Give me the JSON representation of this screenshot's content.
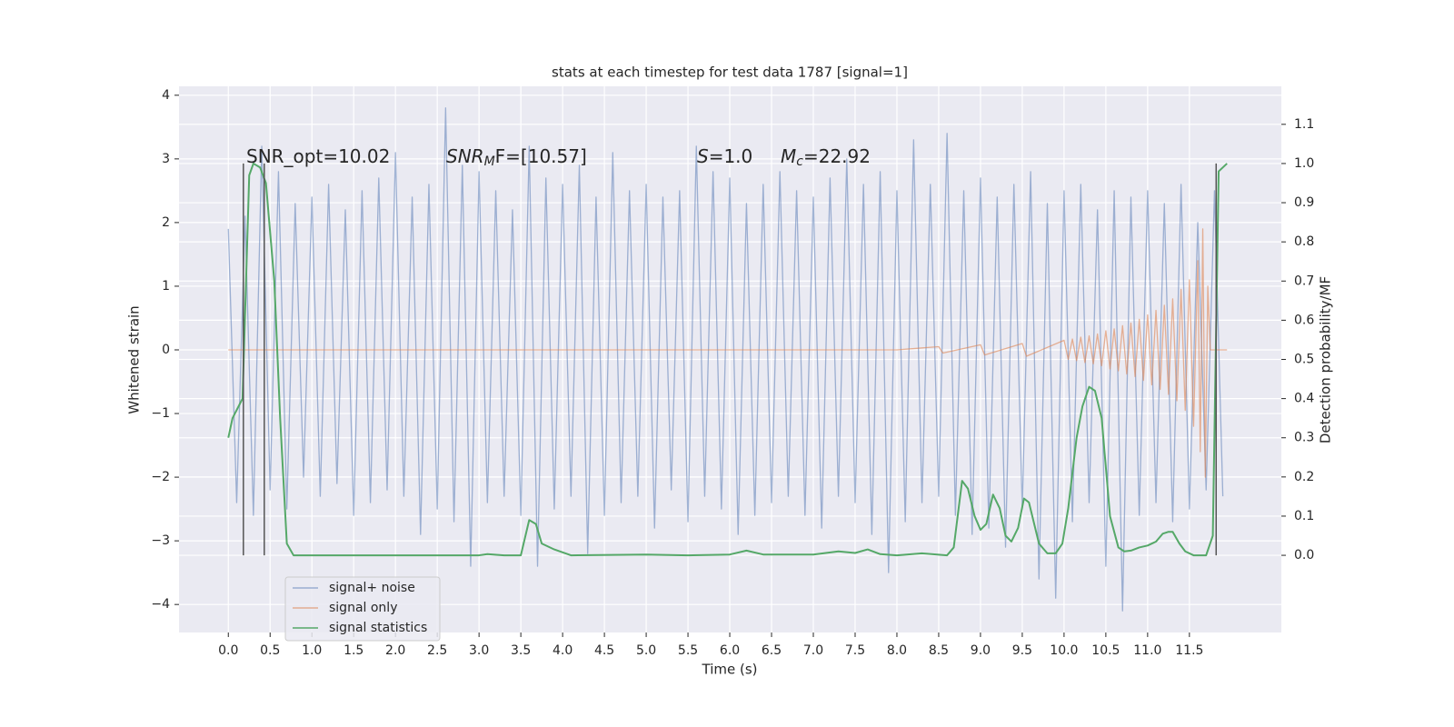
{
  "chart_data": {
    "type": "line",
    "title": "stats at each timestep for test data 1787 [signal=1]",
    "xlabel": "Time (s)",
    "ylabel": "Whitened strain",
    "y2label": "Detection probability/MF",
    "xlim": [
      -0.59,
      12.6
    ],
    "ylim": [
      -4.44,
      4.14
    ],
    "y2lim": [
      -0.197,
      1.197
    ],
    "xticks": [
      {
        "value": 0,
        "label": "0.0"
      },
      0.5,
      {
        "value": 1,
        "label": "1.0"
      },
      1.5,
      {
        "value": 2,
        "label": "2.0"
      },
      2.5,
      {
        "value": 3,
        "label": "3.0"
      },
      3.5,
      {
        "value": 4,
        "label": "4.0"
      },
      4.5,
      {
        "value": 5,
        "label": "5.0"
      },
      5.5,
      {
        "value": 6,
        "label": "6.0"
      },
      6.5,
      {
        "value": 7,
        "label": "7.0"
      },
      7.5,
      {
        "value": 8,
        "label": "8.0"
      },
      8.5,
      {
        "value": 9,
        "label": "9.0"
      },
      9.5,
      {
        "value": 10,
        "label": "10.0"
      },
      10.5,
      {
        "value": 11,
        "label": "11.0"
      },
      11.5
    ],
    "yticks": [
      {
        "value": -4,
        "label": "−4"
      },
      {
        "value": -3,
        "label": "−3"
      },
      {
        "value": -2,
        "label": "−2"
      },
      {
        "value": -1,
        "label": "−1"
      },
      0,
      1,
      2,
      3,
      4
    ],
    "y2ticks": [
      {
        "value": 0,
        "label": "0.0"
      },
      0.1,
      0.2,
      0.3,
      0.4,
      0.5,
      0.6,
      0.7,
      0.8,
      0.9,
      {
        "value": 1,
        "label": "1.0"
      },
      1.1
    ],
    "grid": true,
    "legend": "lower left",
    "series": [
      {
        "name": "signal+ noise",
        "color": "#4c72b0",
        "x": [
          0.0,
          0.1,
          0.2,
          0.3,
          0.4,
          0.5,
          0.6,
          0.7,
          0.8,
          0.9,
          1.0,
          1.1,
          1.2,
          1.3,
          1.4,
          1.5,
          1.6,
          1.7,
          1.8,
          1.9,
          2.0,
          2.1,
          2.2,
          2.3,
          2.4,
          2.5,
          2.6,
          2.7,
          2.8,
          2.9,
          3.0,
          3.1,
          3.2,
          3.3,
          3.4,
          3.5,
          3.6,
          3.7,
          3.8,
          3.9,
          4.0,
          4.1,
          4.2,
          4.3,
          4.4,
          4.5,
          4.6,
          4.7,
          4.8,
          4.9,
          5.0,
          5.1,
          5.2,
          5.3,
          5.4,
          5.5,
          5.6,
          5.7,
          5.8,
          5.9,
          6.0,
          6.1,
          6.2,
          6.3,
          6.4,
          6.5,
          6.6,
          6.7,
          6.8,
          6.9,
          7.0,
          7.1,
          7.2,
          7.3,
          7.4,
          7.5,
          7.6,
          7.7,
          7.8,
          7.9,
          8.0,
          8.1,
          8.2,
          8.3,
          8.4,
          8.5,
          8.6,
          8.7,
          8.8,
          8.9,
          9.0,
          9.1,
          9.2,
          9.3,
          9.4,
          9.5,
          9.6,
          9.7,
          9.8,
          9.9,
          10.0,
          10.1,
          10.2,
          10.3,
          10.4,
          10.5,
          10.6,
          10.7,
          10.8,
          10.9,
          11.0,
          11.1,
          11.2,
          11.3,
          11.4,
          11.5,
          11.6,
          11.7,
          11.8,
          11.9
        ],
        "values": [
          1.9,
          -2.4,
          2.1,
          -2.6,
          3.2,
          -2.2,
          2.8,
          -2.5,
          2.3,
          -2.0,
          2.4,
          -2.3,
          2.6,
          -2.1,
          2.2,
          -2.6,
          2.5,
          -2.4,
          2.7,
          -2.2,
          3.1,
          -2.3,
          2.4,
          -2.9,
          2.6,
          -2.5,
          3.8,
          -2.7,
          2.9,
          -3.4,
          2.8,
          -2.4,
          2.5,
          -2.3,
          2.2,
          -2.6,
          3.2,
          -3.4,
          2.7,
          -2.5,
          2.6,
          -2.3,
          2.9,
          -3.2,
          2.4,
          -2.6,
          3.1,
          -2.4,
          2.5,
          -2.3,
          2.6,
          -2.8,
          2.4,
          -2.2,
          2.5,
          -2.7,
          3.2,
          -2.3,
          2.8,
          -2.5,
          2.7,
          -2.9,
          2.3,
          -2.6,
          2.6,
          -2.4,
          2.8,
          -2.3,
          2.5,
          -2.6,
          2.4,
          -2.8,
          2.7,
          -2.3,
          3.0,
          -2.4,
          2.6,
          -2.9,
          2.8,
          -3.5,
          2.5,
          -2.7,
          3.3,
          -2.4,
          2.6,
          -2.3,
          3.4,
          -2.6,
          2.5,
          -2.9,
          2.7,
          -2.8,
          2.4,
          -3.1,
          2.6,
          -2.5,
          2.8,
          -3.6,
          2.3,
          -3.9,
          2.5,
          -2.7,
          2.6,
          -2.4,
          2.2,
          -3.4,
          2.5,
          -4.1,
          2.4,
          -2.6,
          2.5,
          -2.4,
          2.3,
          -2.7,
          2.6,
          -2.5,
          2.0,
          -2.2,
          2.5,
          -2.3
        ]
      },
      {
        "name": "signal only",
        "color": "#dd8452",
        "x": [
          0.0,
          8.0,
          8.5,
          8.55,
          9.0,
          9.05,
          9.5,
          9.55,
          10.0,
          10.05,
          10.1,
          10.15,
          10.2,
          10.25,
          10.3,
          10.35,
          10.4,
          10.45,
          10.5,
          10.55,
          10.6,
          10.65,
          10.7,
          10.75,
          10.8,
          10.85,
          10.9,
          10.95,
          11.0,
          11.05,
          11.1,
          11.15,
          11.2,
          11.25,
          11.3,
          11.35,
          11.4,
          11.45,
          11.5,
          11.55,
          11.6,
          11.63,
          11.66,
          11.69,
          11.72,
          11.75,
          11.95
        ],
        "values": [
          0,
          0,
          0.05,
          -0.05,
          0.08,
          -0.08,
          0.1,
          -0.1,
          0.15,
          -0.15,
          0.17,
          -0.17,
          0.2,
          -0.2,
          0.22,
          -0.22,
          0.25,
          -0.25,
          0.3,
          -0.3,
          0.33,
          -0.33,
          0.38,
          -0.38,
          0.42,
          -0.42,
          0.48,
          -0.48,
          0.55,
          -0.55,
          0.62,
          -0.62,
          0.7,
          -0.7,
          0.8,
          -0.8,
          0.95,
          -0.95,
          1.1,
          -1.2,
          1.4,
          -1.6,
          1.9,
          -2.0,
          1.0,
          0,
          0
        ]
      },
      {
        "name": "signal statistics",
        "color": "#55a868",
        "axis": "y2",
        "x": [
          0.0,
          0.05,
          0.17,
          0.25,
          0.3,
          0.38,
          0.45,
          0.55,
          0.62,
          0.7,
          0.78,
          1.0,
          2.0,
          3.0,
          3.1,
          3.3,
          3.5,
          3.6,
          3.68,
          3.75,
          3.9,
          4.1,
          5.0,
          5.5,
          6.0,
          6.2,
          6.4,
          7.0,
          7.3,
          7.5,
          7.65,
          7.8,
          8.0,
          8.3,
          8.6,
          8.68,
          8.78,
          8.85,
          8.93,
          9.0,
          9.07,
          9.15,
          9.23,
          9.3,
          9.37,
          9.45,
          9.52,
          9.58,
          9.7,
          9.8,
          9.9,
          9.98,
          10.05,
          10.15,
          10.22,
          10.3,
          10.37,
          10.45,
          10.55,
          10.65,
          10.72,
          10.8,
          10.9,
          11.0,
          11.1,
          11.18,
          11.25,
          11.3,
          11.38,
          11.45,
          11.55,
          11.7,
          11.78,
          11.85,
          11.95
        ],
        "values": [
          0.3,
          0.35,
          0.4,
          0.97,
          1.0,
          0.99,
          0.95,
          0.7,
          0.35,
          0.03,
          0.0,
          0,
          0,
          0,
          0.003,
          0,
          0,
          0.09,
          0.08,
          0.03,
          0.015,
          0,
          0.002,
          0,
          0.002,
          0.012,
          0.002,
          0.002,
          0.01,
          0.006,
          0.015,
          0.003,
          0,
          0.005,
          0,
          0.02,
          0.19,
          0.17,
          0.1,
          0.065,
          0.08,
          0.155,
          0.12,
          0.05,
          0.035,
          0.07,
          0.145,
          0.135,
          0.03,
          0.005,
          0.005,
          0.03,
          0.12,
          0.3,
          0.38,
          0.43,
          0.42,
          0.35,
          0.1,
          0.02,
          0.01,
          0.012,
          0.02,
          0.025,
          0.035,
          0.055,
          0.06,
          0.06,
          0.03,
          0.01,
          0.0,
          0,
          0.05,
          0.98,
          1.0
        ]
      }
    ],
    "vlines": {
      "x": [
        0.18,
        0.43,
        11.82
      ],
      "y2": [
        0,
        1
      ],
      "color": "#555555"
    },
    "annotations": [
      {
        "text": "SNR_opt=10.02"
      },
      {
        "italic": "SNR",
        "sub": "M",
        "text": "F=[10.57]"
      },
      {
        "italic": "S",
        "text": "=1.0"
      },
      {
        "italic": "M",
        "sub": "c",
        "text": "=22.92"
      }
    ]
  }
}
